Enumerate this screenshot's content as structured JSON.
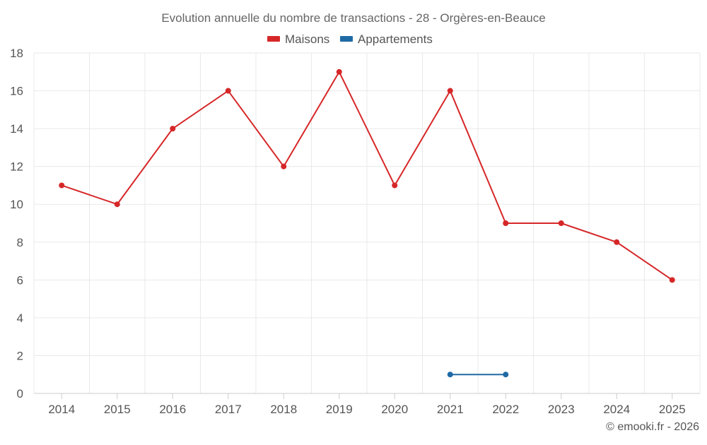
{
  "chart_data": {
    "type": "line",
    "title": "Evolution annuelle du nombre de transactions - 28 - Orgères-en-Beauce",
    "categories": [
      "2014",
      "2015",
      "2016",
      "2017",
      "2018",
      "2019",
      "2020",
      "2021",
      "2022",
      "2023",
      "2024",
      "2025"
    ],
    "series": [
      {
        "name": "Maisons",
        "color": "#d62728",
        "values": [
          11,
          10,
          14,
          16,
          12,
          17,
          11,
          16,
          9,
          9,
          8,
          6
        ]
      },
      {
        "name": "Appartements",
        "color": "#1f6aa5",
        "values": [
          null,
          null,
          null,
          null,
          null,
          null,
          null,
          1,
          1,
          null,
          null,
          null
        ]
      }
    ],
    "yticks": [
      "0",
      "2",
      "4",
      "6",
      "8",
      "10",
      "12",
      "14",
      "16",
      "18"
    ],
    "ylim": [
      0,
      18
    ],
    "grid": true,
    "legend_position": "top-center"
  },
  "footer": {
    "credit": "© emooki.fr - 2026"
  }
}
